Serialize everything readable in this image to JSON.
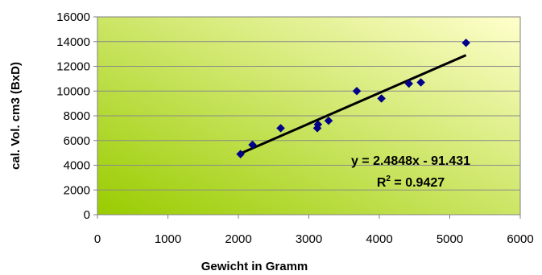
{
  "chart_data": {
    "type": "scatter",
    "title": "",
    "xlabel": "Gewicht in Gramm",
    "ylabel": "cal. Vol. cm3 (BxD)",
    "xlim": [
      0,
      6000
    ],
    "ylim": [
      0,
      16000
    ],
    "x_ticks": [
      "0",
      "1000",
      "2000",
      "3000",
      "4000",
      "5000",
      "6000"
    ],
    "y_ticks": [
      "0",
      "2000",
      "4000",
      "6000",
      "8000",
      "10000",
      "12000",
      "14000",
      "16000"
    ],
    "grid": "horizontal",
    "series": [
      {
        "marker": "diamond",
        "color": "#00008B",
        "points": [
          {
            "x": 2030,
            "y": 4900
          },
          {
            "x": 2200,
            "y": 5650
          },
          {
            "x": 2600,
            "y": 7000
          },
          {
            "x": 3120,
            "y": 7000
          },
          {
            "x": 3130,
            "y": 7300
          },
          {
            "x": 3280,
            "y": 7600
          },
          {
            "x": 3680,
            "y": 10000
          },
          {
            "x": 4030,
            "y": 9400
          },
          {
            "x": 4420,
            "y": 10600
          },
          {
            "x": 4590,
            "y": 10700
          },
          {
            "x": 5230,
            "y": 13900
          }
        ]
      }
    ],
    "trendline": {
      "type": "linear",
      "slope": 2.4848,
      "intercept": -91.431,
      "x_range": [
        2030,
        5230
      ],
      "color": "#000000",
      "equation_label": "y = 2.4848x - 91.431",
      "r2_prefix": "R",
      "r2_exponent": "2",
      "r2_value": " = 0.9427"
    },
    "plot_area_gradient": [
      "#99CC00",
      "#FFFFCC"
    ]
  }
}
